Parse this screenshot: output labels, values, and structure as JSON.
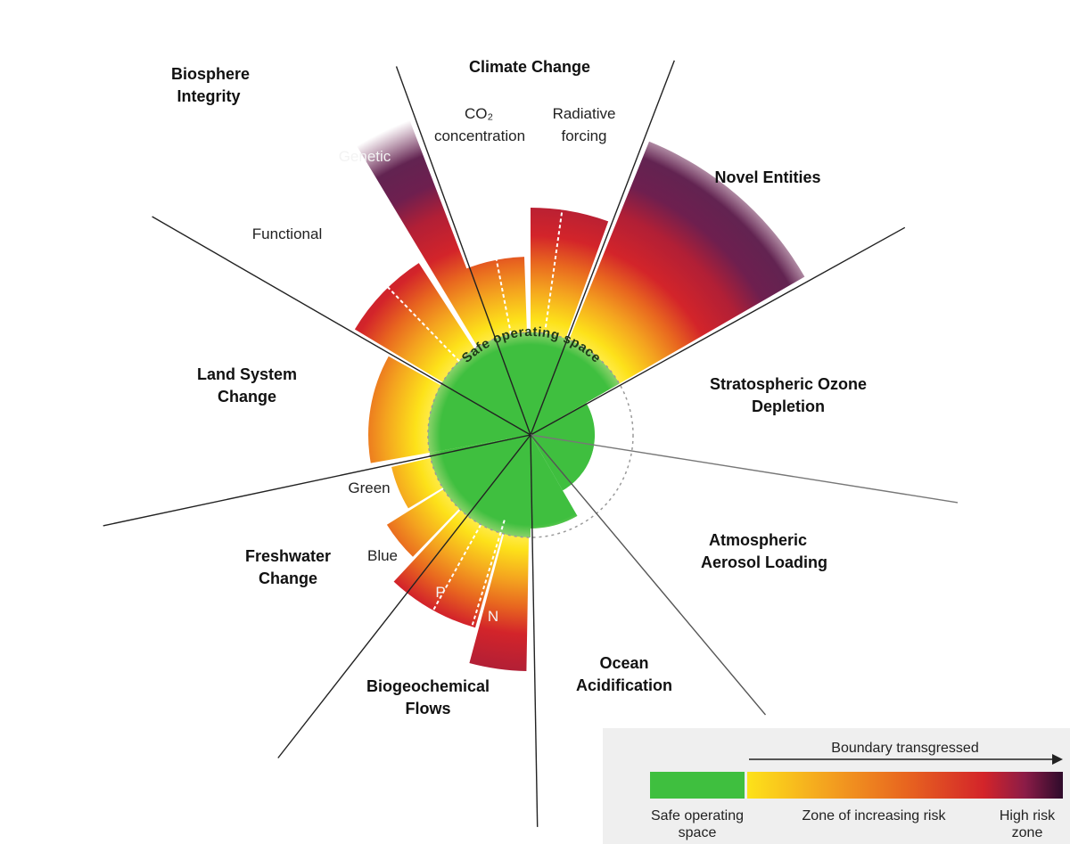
{
  "diagram": {
    "center_label": "Safe operating space",
    "boundaries": {
      "climate_change": {
        "title": "Climate Change",
        "co2": "CO₂ concentration",
        "radiative": "Radiative forcing"
      },
      "novel_entities": {
        "title": "Novel Entities"
      },
      "ozone": {
        "title": "Stratospheric Ozone Depletion"
      },
      "aerosol": {
        "title": "Atmospheric Aerosol Loading"
      },
      "ocean": {
        "title": "Ocean Acidification"
      },
      "biogeochemical": {
        "title": "Biogeochemical Flows",
        "p": "P",
        "n": "N"
      },
      "freshwater": {
        "title": "Freshwater Change",
        "green": "Green",
        "blue": "Blue"
      },
      "land": {
        "title": "Land System Change"
      },
      "biosphere": {
        "title": "Biosphere Integrity",
        "genetic": "Genetic",
        "functional": "Functional"
      }
    }
  },
  "legend": {
    "arrow_label": "Boundary transgressed",
    "safe_label": "Safe operating space",
    "risk_label": "Zone of increasing risk",
    "high_label": "High risk zone"
  },
  "colors": {
    "safe": "#3fbf3f",
    "yellow": "#fde21a",
    "orange": "#f29a1d",
    "red": "#d3242a",
    "purple": "#6e1f4f",
    "dark": "#2e0b2b"
  }
}
